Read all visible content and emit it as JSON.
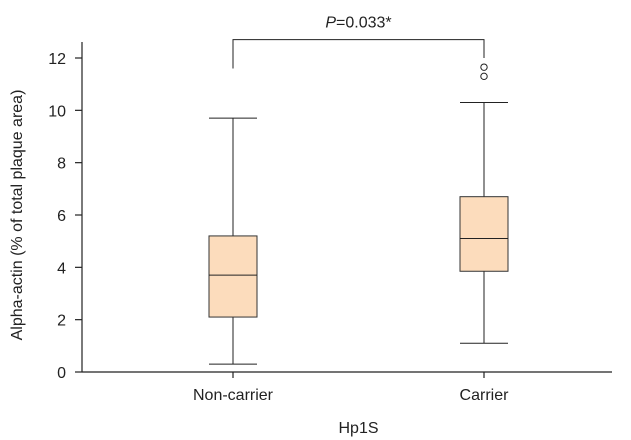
{
  "chart_data": {
    "type": "box",
    "xlabel": "Hp1S",
    "ylabel": "Alpha-actin (% of total plaque area)",
    "ylim": [
      0,
      12.5
    ],
    "yticks": [
      0,
      2,
      4,
      6,
      8,
      10,
      12
    ],
    "categories": [
      "Non-carrier",
      "Carrier"
    ],
    "box_color": "#fcdcbc",
    "series": [
      {
        "category": "Non-carrier",
        "min": 0.3,
        "q1": 2.1,
        "median": 3.7,
        "q3": 5.2,
        "max": 9.7,
        "outliers": []
      },
      {
        "category": "Carrier",
        "min": 1.1,
        "q1": 3.85,
        "median": 5.1,
        "q3": 6.7,
        "max": 10.3,
        "outliers": [
          11.3,
          11.65
        ]
      }
    ],
    "annotation": {
      "text_italic": "P",
      "text_rest": "=0.033*",
      "bracket_level": 12.7,
      "left_drop": 11.6,
      "right_drop": 12.0
    }
  }
}
